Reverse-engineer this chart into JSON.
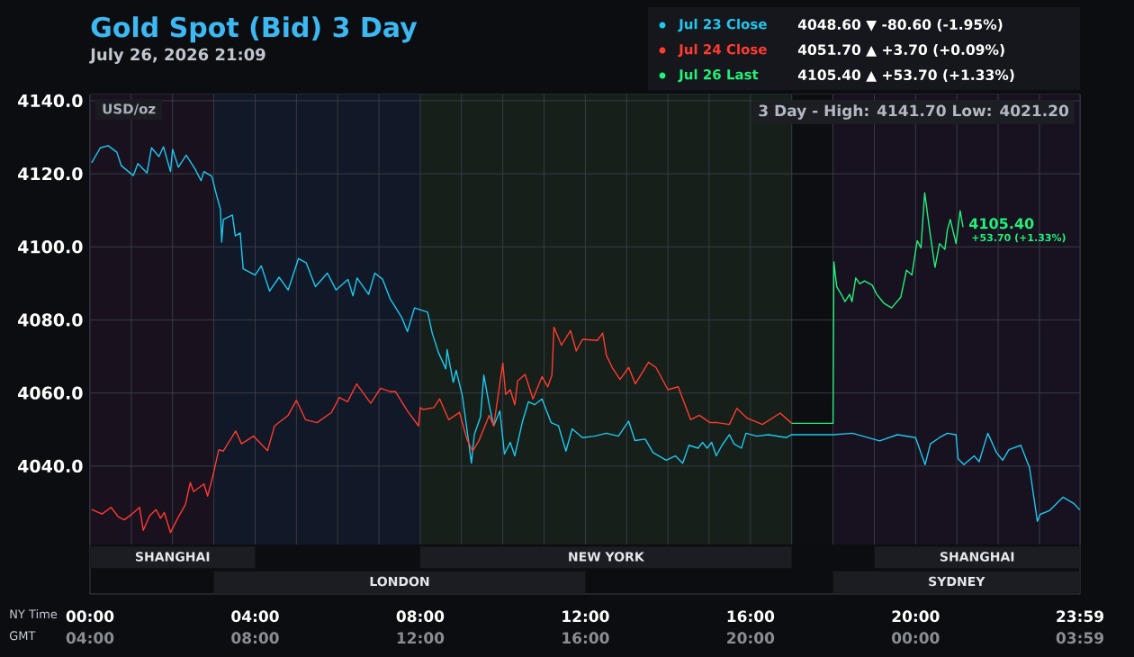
{
  "chart_data": {
    "type": "line",
    "title": "Gold Spot (Bid) 3 Day",
    "subtitle": "July 26, 2026 21:09",
    "ylabel": "USD/oz",
    "xlabel": "NY Time",
    "x2label": "GMT",
    "xlim": [
      0,
      23.983
    ],
    "ylim": [
      4005,
      4141.7
    ],
    "xticks": [
      {
        "value": 0,
        "label": "00:00"
      },
      {
        "value": 1,
        "label": null
      },
      {
        "value": 2,
        "label": null
      },
      {
        "value": 3,
        "label": null
      },
      {
        "value": 4,
        "label": "04:00"
      },
      {
        "value": 5,
        "label": null
      },
      {
        "value": 6,
        "label": null
      },
      {
        "value": 7,
        "label": null
      },
      {
        "value": 8,
        "label": "08:00"
      },
      {
        "value": 9,
        "label": null
      },
      {
        "value": 10,
        "label": null
      },
      {
        "value": 11,
        "label": null
      },
      {
        "value": 12,
        "label": "12:00"
      },
      {
        "value": 13,
        "label": null
      },
      {
        "value": 14,
        "label": null
      },
      {
        "value": 15,
        "label": null
      },
      {
        "value": 16,
        "label": "16:00"
      },
      {
        "value": 17,
        "label": null
      },
      {
        "value": 18,
        "label": null
      },
      {
        "value": 19,
        "label": null
      },
      {
        "value": 20,
        "label": "20:00"
      },
      {
        "value": 21,
        "label": null
      },
      {
        "value": 22,
        "label": null
      },
      {
        "value": 23,
        "label": null
      },
      {
        "value": 23.983,
        "label": "23:59"
      }
    ],
    "x2lim": [
      "2026-07-26T04:00",
      "2026-07-27T03:59"
    ],
    "x2ticks": [
      {
        "value": "2026-07-26T04:00",
        "label": "04:00"
      },
      {
        "value": "2026-07-26T08:00",
        "label": "08:00"
      },
      {
        "value": "2026-07-26T12:00",
        "label": "12:00"
      },
      {
        "value": "2026-07-26T16:00",
        "label": "16:00"
      },
      {
        "value": "2026-07-26T20:00",
        "label": "20:00"
      },
      {
        "value": "2026-07-27T00:00",
        "label": "00:00"
      },
      {
        "value": "2026-07-27T03:59",
        "label": "03:59"
      }
    ],
    "yticks": [
      {
        "value": 4040,
        "label": "4040.0"
      },
      {
        "value": 4060,
        "label": "4060.0"
      },
      {
        "value": 4080,
        "label": "4080.0"
      },
      {
        "value": 4100,
        "label": "4100.0"
      },
      {
        "value": 4120,
        "label": "4120.0"
      },
      {
        "value": 4140,
        "label": "4140.0"
      }
    ],
    "grid": true,
    "legend": "top right",
    "series": [
      {
        "name": "Jul 23 Close",
        "color": "#1ec8f0",
        "x": [
          0.04,
          0.25,
          0.44,
          0.65,
          0.76,
          1.05,
          1.16,
          1.38,
          1.49,
          1.67,
          1.78,
          1.95,
          2.0,
          2.14,
          2.33,
          2.54,
          2.69,
          2.76,
          2.95,
          3.06,
          3.16,
          3.19,
          3.23,
          3.45,
          3.52,
          3.64,
          3.71,
          4.0,
          4.15,
          4.35,
          4.58,
          4.8,
          5.05,
          5.24,
          5.46,
          5.75,
          5.96,
          6.25,
          6.37,
          6.47,
          6.75,
          6.9,
          7.09,
          7.27,
          7.56,
          7.69,
          7.86,
          8.18,
          8.29,
          8.44,
          8.62,
          8.65,
          8.8,
          8.87,
          9.02,
          9.13,
          9.24,
          9.31,
          9.46,
          9.54,
          9.67,
          9.78,
          9.93,
          10.04,
          10.18,
          10.29,
          10.47,
          10.62,
          10.77,
          10.95,
          11.17,
          11.35,
          11.53,
          11.68,
          11.93,
          12.22,
          12.51,
          12.8,
          13.05,
          13.2,
          13.45,
          13.64,
          13.96,
          14.18,
          14.36,
          14.51,
          14.73,
          14.84,
          14.95,
          15.06,
          15.17,
          15.31,
          15.49,
          15.6,
          15.78,
          15.89,
          16.15,
          16.43,
          16.87,
          17.0,
          18.0,
          18.47,
          19.13,
          19.56,
          20.0,
          20.23,
          20.36,
          20.58,
          20.77,
          20.98,
          21.03,
          21.17,
          21.42,
          21.54,
          21.75,
          21.96,
          22.11,
          22.26,
          22.55,
          22.69,
          22.76,
          22.95,
          23.02,
          23.24,
          23.57,
          23.83,
          23.98
        ],
        "values": [
          4123.0,
          4127.1,
          4127.7,
          4125.9,
          4122.2,
          4119.5,
          4122.8,
          4120.2,
          4127.1,
          4124.7,
          4127.4,
          4120.6,
          4126.7,
          4121.8,
          4125.1,
          4121.4,
          4118.1,
          4120.6,
          4119.3,
          4114.4,
          4110.3,
          4101.3,
          4107.5,
          4108.7,
          4103.0,
          4103.8,
          4094.0,
          4092.3,
          4094.8,
          4087.9,
          4091.7,
          4088.2,
          4096.8,
          4095.6,
          4089.1,
          4092.8,
          4088.2,
          4091.1,
          4086.6,
          4091.5,
          4087.0,
          4092.8,
          4091.1,
          4085.8,
          4080.5,
          4076.8,
          4083.3,
          4082.1,
          4076.4,
          4071.1,
          4066.6,
          4071.9,
          4062.9,
          4066.2,
          4059.2,
          4050.2,
          4040.8,
          4048.6,
          4053.5,
          4064.9,
          4056.8,
          4051.0,
          4055.1,
          4043.3,
          4046.5,
          4042.8,
          4051.9,
          4057.6,
          4056.8,
          4058.4,
          4051.9,
          4051.0,
          4044.1,
          4050.2,
          4047.8,
          4048.2,
          4049.0,
          4048.2,
          4052.3,
          4047.0,
          4047.4,
          4043.7,
          4041.6,
          4042.8,
          4040.8,
          4045.7,
          4044.9,
          4046.5,
          4044.9,
          4046.5,
          4042.8,
          4045.7,
          4048.6,
          4046.1,
          4044.9,
          4049.0,
          4048.2,
          4048.6,
          4047.8,
          4048.6,
          4048.6,
          4049.0,
          4046.9,
          4048.6,
          4047.8,
          4040.4,
          4046.1,
          4047.8,
          4049.0,
          4048.6,
          4042.0,
          4040.4,
          4042.8,
          4041.2,
          4049.0,
          4043.7,
          4041.6,
          4044.5,
          4045.7,
          4041.6,
          4039.6,
          4024.9,
          4026.8,
          4027.8,
          4031.5,
          4029.8,
          4028.0
        ]
      },
      {
        "name": "Jul 24 Close",
        "color": "#ff3b30",
        "x": [
          0.04,
          0.29,
          0.51,
          0.69,
          0.83,
          1.02,
          1.2,
          1.29,
          1.45,
          1.6,
          1.71,
          1.8,
          1.95,
          2.14,
          2.31,
          2.43,
          2.51,
          2.76,
          2.85,
          2.98,
          3.12,
          3.23,
          3.53,
          3.67,
          3.96,
          4.3,
          4.47,
          4.8,
          5.0,
          5.22,
          5.5,
          5.85,
          6.04,
          6.24,
          6.46,
          6.8,
          7.04,
          7.27,
          7.4,
          7.69,
          7.96,
          8.0,
          8.07,
          8.33,
          8.47,
          8.69,
          8.95,
          9.13,
          9.27,
          9.42,
          9.6,
          9.67,
          9.78,
          10.0,
          10.07,
          10.18,
          10.29,
          10.36,
          10.54,
          10.73,
          10.95,
          11.09,
          11.19,
          11.24,
          11.42,
          11.64,
          11.78,
          11.93,
          12.29,
          12.42,
          12.51,
          12.65,
          12.84,
          13.05,
          13.21,
          13.53,
          13.71,
          14.0,
          14.25,
          14.55,
          14.76,
          15.02,
          15.2,
          15.49,
          15.67,
          15.92,
          16.29,
          16.72,
          17.0
        ],
        "values": [
          4028.1,
          4026.9,
          4028.7,
          4026.1,
          4025.3,
          4026.9,
          4028.7,
          4022.4,
          4026.5,
          4028.1,
          4025.7,
          4027.3,
          4021.8,
          4026.1,
          4029.4,
          4035.5,
          4033.0,
          4035.1,
          4031.8,
          4037.5,
          4044.5,
          4044.1,
          4049.6,
          4046.1,
          4048.2,
          4044.2,
          4051.0,
          4053.9,
          4058.0,
          4052.7,
          4051.9,
          4054.7,
          4058.8,
          4057.6,
          4062.5,
          4057.2,
          4061.3,
          4060.4,
          4060.4,
          4055.1,
          4051.0,
          4056.0,
          4055.5,
          4056.0,
          4058.4,
          4052.7,
          4054.7,
          4047.4,
          4044.1,
          4046.9,
          4051.9,
          4053.9,
          4051.0,
          4068.2,
          4059.6,
          4060.9,
          4056.8,
          4063.3,
          4065.1,
          4058.4,
          4064.5,
          4061.7,
          4064.9,
          4078.0,
          4073.1,
          4077.1,
          4071.5,
          4074.7,
          4074.4,
          4076.4,
          4070.3,
          4067.0,
          4063.7,
          4067.0,
          4062.5,
          4068.4,
          4067.0,
          4060.9,
          4061.7,
          4052.7,
          4053.9,
          4051.9,
          4051.9,
          4051.4,
          4055.8,
          4053.1,
          4051.4,
          4054.5,
          4051.7
        ]
      },
      {
        "name": "Jul 26 Last",
        "color": "#22f07a",
        "x": [
          17.0,
          18.0,
          18.02,
          18.09,
          18.22,
          18.29,
          18.4,
          18.46,
          18.55,
          18.65,
          18.76,
          18.95,
          19.06,
          19.23,
          19.42,
          19.64,
          19.78,
          19.91,
          20.04,
          20.13,
          20.22,
          20.35,
          20.47,
          20.58,
          20.71,
          20.77,
          20.84,
          20.98,
          21.08,
          21.15
        ],
        "values": [
          4051.7,
          4051.7,
          4095.9,
          4089.1,
          4086.6,
          4085.0,
          4087.0,
          4085.0,
          4091.5,
          4089.9,
          4090.7,
          4089.5,
          4087.0,
          4084.6,
          4083.3,
          4086.2,
          4093.6,
          4092.3,
          4101.7,
          4099.7,
          4114.8,
          4103.8,
          4094.4,
          4100.9,
          4099.3,
          4104.6,
          4107.5,
          4100.9,
          4109.9,
          4105.4
        ]
      }
    ],
    "bands": [
      {
        "axis": "x",
        "from": 0,
        "to": 3,
        "color": "#1a111f"
      },
      {
        "axis": "x",
        "from": 3,
        "to": 8,
        "color": "#111827"
      },
      {
        "axis": "x",
        "from": 8,
        "to": 17,
        "color": "#161f19"
      },
      {
        "axis": "x",
        "from": 17,
        "to": 18,
        "color": "#0d0e11"
      },
      {
        "axis": "x",
        "from": 18,
        "to": 23.983,
        "color": "#18111f"
      },
      {
        "axis": "x",
        "from": 0,
        "to": 4,
        "label": "SHANGHAI",
        "color": "#1b1d23"
      },
      {
        "axis": "x",
        "from": 3,
        "to": 12,
        "label": "LONDON",
        "color": "#1b1d23"
      },
      {
        "axis": "x",
        "from": 8,
        "to": 17,
        "label": "NEW YORK",
        "color": "#1b1d23"
      },
      {
        "axis": "x",
        "from": 19,
        "to": 23.983,
        "label": "SHANGHAI",
        "color": "#1b1d23"
      },
      {
        "axis": "x",
        "from": 18,
        "to": 23.983,
        "label": "SYDNEY",
        "color": "#1b1d23"
      }
    ],
    "annotations": [
      "4048.60 ▼ -80.60 (-1.95%)",
      "4051.70 ▲ +3.70 (+0.09%)",
      "4105.40 ▲ +53.70 (+1.33%)",
      "3 Day - High: 4141.70  Low: 4021.20",
      {
        "text": "4105.40",
        "x": 21.15,
        "y": 4105.4
      },
      {
        "text": "+53.70 (+1.33%)",
        "x": 21.15,
        "y": 4105.4
      }
    ]
  }
}
